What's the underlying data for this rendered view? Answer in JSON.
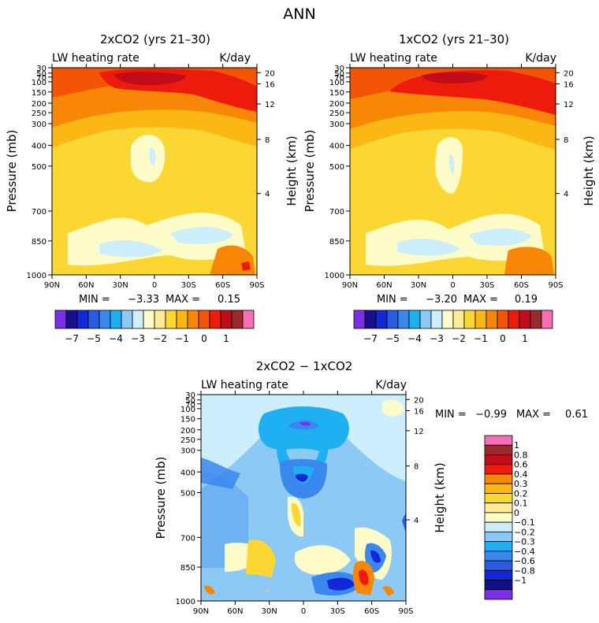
{
  "figure": {
    "title": "ANN"
  },
  "chart_data": [
    {
      "type": "heatmap",
      "title": "2xCO2 (yrs 21–30)",
      "top_left_label": "LW heating rate",
      "top_right_label": "K/day",
      "ylabel": "Pressure (mb)",
      "ylabel_right": "Height (km)",
      "x_ticks": [
        "90N",
        "60N",
        "30N",
        "0",
        "30S",
        "60S",
        "90S"
      ],
      "y_ticks": [
        "30",
        "50",
        "70",
        "100",
        "150",
        "200",
        "250",
        "300",
        "400",
        "500",
        "700",
        "850",
        "1000"
      ],
      "y_ticks_right": [
        "20",
        "16",
        "12",
        "8",
        "4"
      ],
      "stats": {
        "min_label": "MIN =",
        "min": "−3.33",
        "max_label": "MAX =",
        "max": "0.15"
      }
    },
    {
      "type": "heatmap",
      "title": "1xCO2 (yrs 21–30)",
      "top_left_label": "LW heating rate",
      "top_right_label": "K/day",
      "ylabel": "Pressure (mb)",
      "ylabel_right": "Height (km)",
      "x_ticks": [
        "90N",
        "60N",
        "30N",
        "0",
        "30S",
        "60S",
        "90S"
      ],
      "y_ticks": [
        "30",
        "50",
        "70",
        "100",
        "150",
        "200",
        "250",
        "300",
        "400",
        "500",
        "700",
        "850",
        "1000"
      ],
      "y_ticks_right": [
        "20",
        "16",
        "12",
        "8",
        "4"
      ],
      "stats": {
        "min_label": "MIN =",
        "min": "−3.20",
        "max_label": "MAX =",
        "max": "0.19"
      }
    },
    {
      "type": "heatmap",
      "title": "2xCO2 − 1xCO2",
      "top_left_label": "LW heating rate",
      "top_right_label": "K/day",
      "ylabel": "Pressure (mb)",
      "ylabel_right": "Height (km)",
      "x_ticks": [
        "90N",
        "60N",
        "30N",
        "0",
        "30S",
        "60S",
        "90S"
      ],
      "y_ticks": [
        "30",
        "50",
        "70",
        "100",
        "150",
        "200",
        "250",
        "300",
        "400",
        "500",
        "700",
        "850",
        "1000"
      ],
      "y_ticks_right": [
        "20",
        "16",
        "12",
        "8",
        "4"
      ],
      "stats": {
        "min_label": "MIN =",
        "min": "−0.99",
        "max_label": "MAX =",
        "max": "0.61"
      }
    }
  ],
  "colorbar_top": {
    "colors": [
      "#7b2fe8",
      "#1a0f8c",
      "#1326d8",
      "#2a5be3",
      "#3a87ee",
      "#1fb0f2",
      "#8ccaf5",
      "#cdeefc",
      "#fdfcc9",
      "#fdeb96",
      "#fcd734",
      "#fbb714",
      "#f98707",
      "#f45406",
      "#ed1b0b",
      "#c10d1a",
      "#9b2a2e",
      "#f46fb4"
    ],
    "labels": [
      "−7",
      "−5",
      "−4",
      "−3",
      "−2",
      "−1",
      "0",
      "1"
    ]
  },
  "colorbar_diff": {
    "colors": [
      "#7b2fe8",
      "#0f0f8c",
      "#1326d8",
      "#2a5be3",
      "#3a87ee",
      "#1fb0f2",
      "#8ccaf5",
      "#cdeefc",
      "#fdfcc9",
      "#fdeb96",
      "#fcd734",
      "#fbb714",
      "#f98707",
      "#ed1b0b",
      "#c10d1a",
      "#9b2a2e",
      "#f46fb4"
    ],
    "labels": [
      "1",
      "0.8",
      "0.6",
      "0.4",
      "0.3",
      "0.2",
      "0.1",
      "0",
      "−0.1",
      "−0.2",
      "−0.3",
      "−0.4",
      "−0.6",
      "−0.8",
      "−1"
    ]
  }
}
